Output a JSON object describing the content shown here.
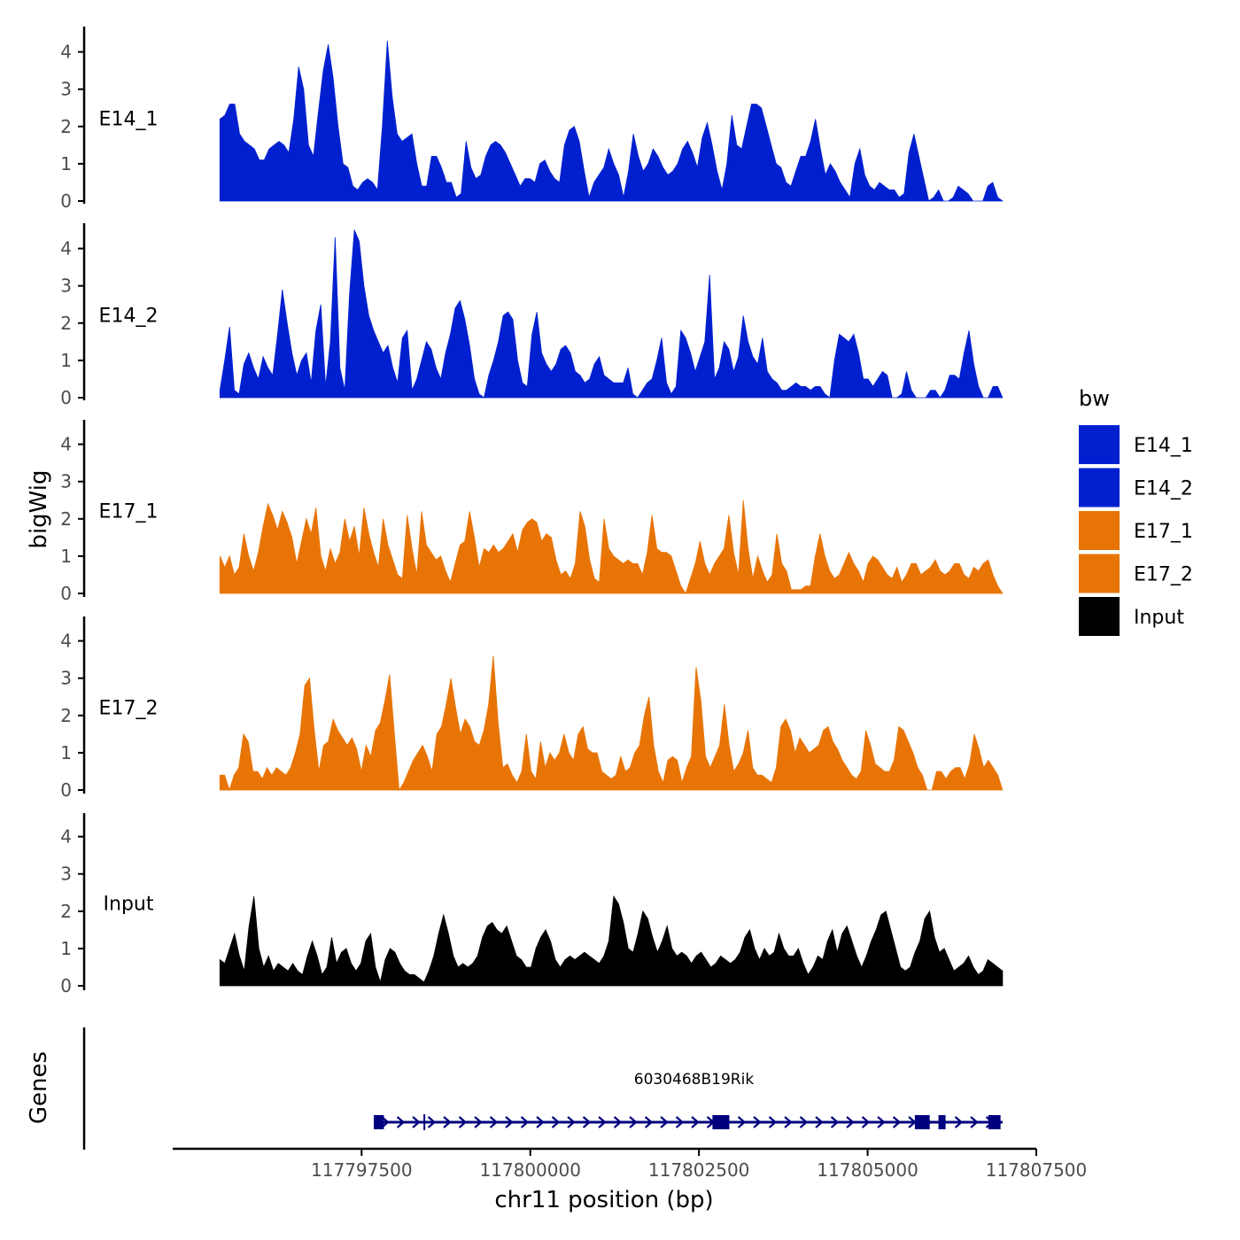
{
  "chart_data": {
    "type": "area",
    "title": "",
    "ylabel": "bigWig",
    "xlabel": "chr11 position (bp)",
    "genes_label": "Genes",
    "ylim": [
      0,
      4.6
    ],
    "y_ticks": [
      0,
      1,
      2,
      3,
      4
    ],
    "xlim": [
      117794700,
      117807500
    ],
    "x_ticks": [
      117797500,
      117800000,
      117802500,
      117805000,
      117807500
    ],
    "x_tick_labels": [
      "117797500",
      "117800000",
      "117802500",
      "117805000",
      "117807500"
    ],
    "x_start": 117795400,
    "x_end": 117807000,
    "legend": {
      "title": "bw",
      "position": "right",
      "entries": [
        {
          "label": "E14_1",
          "color": "#0020D0"
        },
        {
          "label": "E14_2",
          "color": "#0020D0"
        },
        {
          "label": "E17_1",
          "color": "#E87405"
        },
        {
          "label": "E17_2",
          "color": "#E87405"
        },
        {
          "label": "Input",
          "color": "#000000"
        }
      ]
    },
    "series": [
      {
        "name": "E14_1",
        "color": "#0020D0",
        "values": [
          2.2,
          2.3,
          2.6,
          2.6,
          1.8,
          1.6,
          1.5,
          1.4,
          1.1,
          1.1,
          1.4,
          1.5,
          1.6,
          1.5,
          1.3,
          2.2,
          3.6,
          3.0,
          1.5,
          1.2,
          2.4,
          3.5,
          4.2,
          3.3,
          2.0,
          1.0,
          0.9,
          0.4,
          0.3,
          0.5,
          0.6,
          0.5,
          0.3,
          2.0,
          4.3,
          2.8,
          1.8,
          1.6,
          1.7,
          1.8,
          1.0,
          0.4,
          0.4,
          1.2,
          1.2,
          0.9,
          0.5,
          0.5,
          0.1,
          0.2,
          1.6,
          0.9,
          0.6,
          0.7,
          1.2,
          1.5,
          1.6,
          1.5,
          1.3,
          1.0,
          0.7,
          0.4,
          0.6,
          0.6,
          0.5,
          1.0,
          1.1,
          0.8,
          0.6,
          0.5,
          1.5,
          1.9,
          2.0,
          1.6,
          0.8,
          0.1,
          0.5,
          0.7,
          0.9,
          1.4,
          1.0,
          0.7,
          0.1,
          0.8,
          1.8,
          1.2,
          0.8,
          1.0,
          1.4,
          1.2,
          0.9,
          0.7,
          0.8,
          1.0,
          1.4,
          1.6,
          1.3,
          0.9,
          1.7,
          2.1,
          1.5,
          0.8,
          0.3,
          1.0,
          2.3,
          1.5,
          1.4,
          2.0,
          2.6,
          2.6,
          2.5,
          2.0,
          1.5,
          1.0,
          0.9,
          0.5,
          0.4,
          0.8,
          1.2,
          1.2,
          1.6,
          2.2,
          1.4,
          0.7,
          1.0,
          0.8,
          0.5,
          0.3,
          0.1,
          1.0,
          1.4,
          0.7,
          0.4,
          0.3,
          0.5,
          0.4,
          0.3,
          0.3,
          0.1,
          0.2,
          1.3,
          1.8,
          1.2,
          0.6,
          0.0,
          0.1,
          0.3,
          0.0,
          0.0,
          0.1,
          0.4,
          0.3,
          0.2,
          0.0,
          0.0,
          0.0,
          0.4,
          0.5,
          0.1,
          0.0
        ]
      },
      {
        "name": "E14_2",
        "color": "#0020D0",
        "values": [
          0.2,
          1.0,
          1.9,
          0.2,
          0.1,
          0.9,
          1.2,
          0.8,
          0.5,
          1.1,
          0.8,
          0.6,
          1.7,
          2.9,
          2.0,
          1.2,
          0.6,
          1.0,
          1.2,
          0.4,
          1.8,
          2.5,
          0.3,
          1.5,
          4.3,
          0.8,
          0.2,
          2.8,
          4.5,
          4.2,
          3.0,
          2.2,
          1.8,
          1.5,
          1.2,
          1.4,
          0.8,
          0.4,
          1.6,
          1.8,
          0.2,
          0.5,
          1.0,
          1.5,
          1.3,
          0.8,
          0.5,
          1.2,
          1.7,
          2.4,
          2.6,
          2.1,
          1.4,
          0.5,
          0.1,
          0.0,
          0.6,
          1.0,
          1.5,
          2.2,
          2.3,
          2.1,
          1.0,
          0.4,
          0.3,
          1.7,
          2.3,
          1.2,
          0.9,
          0.7,
          0.9,
          1.3,
          1.4,
          1.2,
          0.7,
          0.6,
          0.4,
          0.5,
          0.9,
          1.1,
          0.6,
          0.5,
          0.4,
          0.4,
          0.4,
          0.8,
          0.1,
          0.0,
          0.2,
          0.4,
          0.5,
          1.0,
          1.6,
          0.4,
          0.1,
          0.3,
          1.8,
          1.6,
          1.2,
          0.7,
          1.1,
          1.5,
          3.3,
          0.5,
          0.8,
          1.5,
          1.3,
          0.7,
          1.1,
          2.2,
          1.5,
          1.1,
          0.9,
          1.6,
          0.7,
          0.5,
          0.4,
          0.2,
          0.2,
          0.3,
          0.4,
          0.3,
          0.3,
          0.2,
          0.3,
          0.3,
          0.1,
          0.0,
          1.0,
          1.7,
          1.6,
          1.5,
          1.7,
          1.2,
          0.5,
          0.5,
          0.3,
          0.5,
          0.7,
          0.6,
          0.0,
          0.0,
          0.1,
          0.7,
          0.2,
          0.0,
          0.0,
          0.0,
          0.2,
          0.2,
          0.0,
          0.2,
          0.6,
          0.6,
          0.5,
          1.2,
          1.8,
          0.9,
          0.3,
          0.0,
          0.0,
          0.3,
          0.3,
          0.0
        ]
      },
      {
        "name": "E17_1",
        "color": "#E87405",
        "values": [
          1.0,
          0.7,
          1.0,
          0.5,
          0.7,
          1.6,
          1.0,
          0.6,
          1.1,
          1.8,
          2.4,
          2.1,
          1.7,
          2.2,
          1.9,
          1.5,
          0.8,
          1.4,
          2.0,
          1.6,
          2.3,
          1.0,
          0.6,
          1.2,
          0.8,
          1.1,
          2.0,
          1.4,
          1.8,
          1.0,
          2.3,
          1.6,
          1.1,
          0.7,
          2.0,
          1.3,
          0.9,
          0.5,
          0.4,
          2.1,
          1.2,
          0.5,
          2.2,
          1.3,
          1.1,
          0.9,
          1.0,
          0.6,
          0.3,
          0.8,
          1.3,
          1.4,
          2.2,
          1.5,
          0.7,
          1.2,
          1.1,
          1.3,
          1.1,
          1.2,
          1.4,
          1.6,
          1.1,
          1.7,
          1.9,
          2.0,
          1.9,
          1.4,
          1.6,
          1.5,
          0.9,
          0.5,
          0.6,
          0.4,
          0.8,
          2.2,
          1.8,
          0.9,
          0.4,
          0.3,
          2.0,
          1.2,
          1.0,
          0.9,
          0.8,
          0.9,
          0.8,
          0.8,
          0.5,
          1.1,
          2.1,
          1.2,
          1.1,
          1.1,
          1.0,
          0.6,
          0.2,
          0.0,
          0.4,
          0.8,
          1.4,
          0.8,
          0.5,
          0.8,
          1.0,
          1.2,
          2.1,
          1.1,
          0.5,
          2.5,
          1.2,
          0.4,
          1.0,
          0.6,
          0.3,
          0.5,
          1.6,
          0.8,
          0.6,
          0.1,
          0.1,
          0.1,
          0.2,
          0.2,
          1.0,
          1.6,
          1.0,
          0.6,
          0.4,
          0.5,
          0.8,
          1.1,
          0.8,
          0.6,
          0.3,
          0.8,
          1.0,
          0.9,
          0.7,
          0.5,
          0.4,
          0.7,
          0.3,
          0.5,
          0.8,
          0.8,
          0.5,
          0.6,
          0.7,
          0.9,
          0.6,
          0.5,
          0.6,
          0.8,
          0.8,
          0.5,
          0.4,
          0.7,
          0.6,
          0.8,
          0.9,
          0.5,
          0.2,
          0.0
        ]
      },
      {
        "name": "E17_2",
        "color": "#E87405",
        "values": [
          0.4,
          0.4,
          0.0,
          0.4,
          0.6,
          1.5,
          1.3,
          0.5,
          0.5,
          0.3,
          0.6,
          0.4,
          0.6,
          0.5,
          0.4,
          0.6,
          1.0,
          1.5,
          2.8,
          3.0,
          1.6,
          0.5,
          1.2,
          1.3,
          1.9,
          1.6,
          1.4,
          1.2,
          1.4,
          1.1,
          0.5,
          1.2,
          0.9,
          1.6,
          1.8,
          2.4,
          3.1,
          1.5,
          0.0,
          0.2,
          0.5,
          0.8,
          1.0,
          1.2,
          0.9,
          0.5,
          1.5,
          1.7,
          2.3,
          3.0,
          2.2,
          1.5,
          1.9,
          1.7,
          1.3,
          1.2,
          1.6,
          2.3,
          3.6,
          1.8,
          0.6,
          0.7,
          0.4,
          0.2,
          0.5,
          1.5,
          0.5,
          0.3,
          1.3,
          0.6,
          1.0,
          0.8,
          1.0,
          1.5,
          1.0,
          0.8,
          1.5,
          1.7,
          1.1,
          1.0,
          1.0,
          0.5,
          0.4,
          0.3,
          0.4,
          0.9,
          0.5,
          0.6,
          1.0,
          1.2,
          2.0,
          2.5,
          1.2,
          0.5,
          0.2,
          0.8,
          0.9,
          0.8,
          0.2,
          0.6,
          0.9,
          3.3,
          2.4,
          0.9,
          0.6,
          0.9,
          1.2,
          2.3,
          1.2,
          0.5,
          0.7,
          1.0,
          1.6,
          0.6,
          0.4,
          0.4,
          0.3,
          0.2,
          0.6,
          1.7,
          1.9,
          1.6,
          1.0,
          1.4,
          1.2,
          1.0,
          1.1,
          1.2,
          1.6,
          1.7,
          1.3,
          1.1,
          0.8,
          0.6,
          0.4,
          0.3,
          0.5,
          1.6,
          1.2,
          0.7,
          0.6,
          0.5,
          0.5,
          0.8,
          1.7,
          1.6,
          1.3,
          1.0,
          0.6,
          0.4,
          0.0,
          0.0,
          0.5,
          0.5,
          0.3,
          0.5,
          0.6,
          0.6,
          0.3,
          0.7,
          1.5,
          1.1,
          0.6,
          0.8,
          0.6,
          0.4,
          0.0
        ]
      },
      {
        "name": "Input",
        "color": "#000000",
        "values": [
          0.7,
          0.6,
          1.0,
          1.4,
          0.8,
          0.4,
          1.6,
          2.4,
          1.0,
          0.5,
          0.8,
          0.4,
          0.6,
          0.5,
          0.4,
          0.6,
          0.4,
          0.3,
          0.8,
          1.2,
          0.8,
          0.3,
          0.5,
          1.3,
          0.6,
          0.9,
          1.0,
          0.6,
          0.4,
          0.6,
          1.2,
          1.4,
          0.5,
          0.1,
          0.7,
          1.0,
          0.9,
          0.6,
          0.4,
          0.3,
          0.3,
          0.2,
          0.1,
          0.4,
          0.8,
          1.4,
          1.9,
          1.4,
          0.8,
          0.5,
          0.6,
          0.5,
          0.6,
          0.8,
          1.3,
          1.6,
          1.7,
          1.5,
          1.4,
          1.6,
          1.2,
          0.8,
          0.7,
          0.5,
          0.5,
          1.0,
          1.3,
          1.5,
          1.2,
          0.7,
          0.5,
          0.7,
          0.8,
          0.7,
          0.8,
          0.9,
          0.8,
          0.7,
          0.6,
          0.8,
          1.2,
          2.4,
          2.2,
          1.7,
          1.0,
          0.9,
          1.4,
          2.0,
          1.8,
          1.3,
          0.9,
          1.2,
          1.6,
          1.0,
          0.8,
          0.9,
          0.8,
          0.6,
          0.8,
          0.9,
          0.7,
          0.5,
          0.6,
          0.8,
          0.7,
          0.6,
          0.7,
          0.9,
          1.3,
          1.5,
          1.0,
          0.7,
          1.0,
          0.8,
          0.9,
          1.4,
          1.0,
          0.8,
          0.8,
          1.0,
          0.6,
          0.3,
          0.5,
          0.8,
          0.7,
          1.2,
          1.5,
          0.9,
          1.4,
          1.6,
          1.2,
          0.8,
          0.5,
          0.8,
          1.2,
          1.5,
          1.9,
          2.0,
          1.5,
          1.0,
          0.5,
          0.4,
          0.5,
          0.9,
          1.2,
          1.8,
          2.0,
          1.3,
          0.9,
          1.0,
          0.7,
          0.4,
          0.5,
          0.6,
          0.8,
          0.5,
          0.3,
          0.4,
          0.7,
          0.6,
          0.5,
          0.4
        ]
      }
    ],
    "gene": {
      "name": "6030468B19Rik",
      "strand": "+",
      "start": 117797720,
      "end": 117807000,
      "exons": [
        {
          "start": 117797680,
          "end": 117797830
        },
        {
          "start": 117802700,
          "end": 117802950
        },
        {
          "start": 117805700,
          "end": 117805920
        },
        {
          "start": 117806050,
          "end": 117806150
        },
        {
          "start": 117806790,
          "end": 117806970
        }
      ]
    }
  }
}
